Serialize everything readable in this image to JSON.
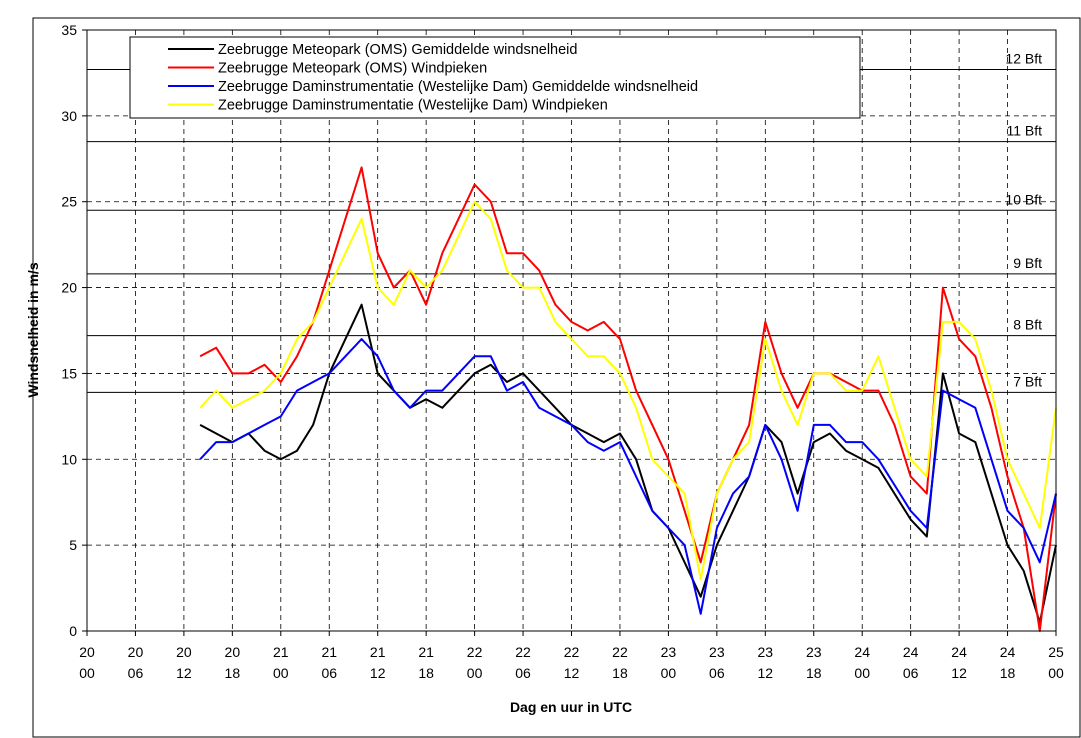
{
  "chart_data": {
    "type": "line",
    "xlabel": "Dag en uur in UTC",
    "ylabel": "Windsnelheid in m/s",
    "x": [
      14,
      16,
      18,
      20,
      22,
      24,
      26,
      28,
      30,
      32,
      34,
      36,
      38,
      40,
      42,
      44,
      46,
      48,
      50,
      52,
      54,
      56,
      58,
      60,
      62,
      64,
      66,
      68,
      70,
      72,
      74,
      76,
      78,
      80,
      82,
      84,
      86,
      88,
      90,
      92,
      94,
      96,
      98,
      100,
      102,
      104,
      106,
      108,
      110,
      112,
      114,
      116,
      118,
      120
    ],
    "series": [
      {
        "name": "Zeebrugge Meteopark (OMS) Gemiddelde windsnelheid",
        "color": "#000000",
        "values": [
          12,
          11.5,
          11,
          11.5,
          10.5,
          10,
          10.5,
          12,
          15,
          17,
          19,
          15,
          14,
          13,
          13.5,
          13,
          14,
          15,
          15.5,
          14.5,
          15,
          14,
          13,
          12,
          11.5,
          11,
          11.5,
          10,
          7,
          6,
          4,
          2,
          5,
          7,
          9,
          12,
          11,
          8,
          11,
          11.5,
          10.5,
          10,
          9.5,
          8,
          6.5,
          5.5,
          15,
          11.5,
          11,
          8,
          5,
          3.5,
          0.5,
          5
        ]
      },
      {
        "name": "Zeebrugge Meteopark (OMS) Windpieken",
        "color": "#ff0000",
        "values": [
          16,
          16.5,
          15,
          15,
          15.5,
          14.5,
          16,
          18,
          21,
          24,
          27,
          22,
          20,
          21,
          19,
          22,
          24,
          26,
          25,
          22,
          22,
          21,
          19,
          18,
          17.5,
          18,
          17,
          14,
          12,
          10,
          7,
          4,
          8,
          10,
          12,
          18,
          15,
          13,
          15,
          15,
          14.5,
          14,
          14,
          12,
          9,
          8,
          20,
          17,
          16,
          13,
          9,
          6,
          0,
          8
        ]
      },
      {
        "name": "Zeebrugge Daminstrumentatie (Westelijke Dam) Gemiddelde windsnelheid",
        "color": "#0000ff",
        "values": [
          10,
          11,
          11,
          11.5,
          12,
          12.5,
          14,
          14.5,
          15,
          16,
          17,
          16,
          14,
          13,
          14,
          14,
          15,
          16,
          16,
          14,
          14.5,
          13,
          12.5,
          12,
          11,
          10.5,
          11,
          9,
          7,
          6,
          5,
          1,
          6,
          8,
          9,
          12,
          10,
          7,
          12,
          12,
          11,
          11,
          10,
          8.5,
          7,
          6,
          14,
          13.5,
          13,
          10,
          7,
          6,
          4,
          8
        ]
      },
      {
        "name": "Zeebrugge Daminstrumentatie (Westelijke Dam) Windpieken",
        "color": "#ffff00",
        "values": [
          13,
          14,
          13,
          13.5,
          14,
          15,
          17,
          18,
          20,
          22,
          24,
          20,
          19,
          21,
          20,
          21,
          23,
          25,
          24,
          21,
          20,
          20,
          18,
          17,
          16,
          16,
          15,
          13,
          10,
          9,
          8,
          3,
          8,
          10,
          11,
          17,
          14,
          12,
          15,
          15,
          14,
          14,
          16,
          13,
          10,
          9,
          18,
          18,
          17,
          14,
          10,
          8,
          6,
          13
        ]
      }
    ],
    "xlim": [
      0,
      120
    ],
    "xticks": [
      {
        "value": 0,
        "label": "20 00"
      },
      {
        "value": 6,
        "label": "20 06"
      },
      {
        "value": 12,
        "label": "20 12"
      },
      {
        "value": 18,
        "label": "20 18"
      },
      {
        "value": 24,
        "label": "21 00"
      },
      {
        "value": 30,
        "label": "21 06"
      },
      {
        "value": 36,
        "label": "21 12"
      },
      {
        "value": 42,
        "label": "21 18"
      },
      {
        "value": 48,
        "label": "22 00"
      },
      {
        "value": 54,
        "label": "22 06"
      },
      {
        "value": 60,
        "label": "22 12"
      },
      {
        "value": 66,
        "label": "22 18"
      },
      {
        "value": 72,
        "label": "23 00"
      },
      {
        "value": 78,
        "label": "23 06"
      },
      {
        "value": 84,
        "label": "23 12"
      },
      {
        "value": 90,
        "label": "23 18"
      },
      {
        "value": 96,
        "label": "24 00"
      },
      {
        "value": 102,
        "label": "24 06"
      },
      {
        "value": 108,
        "label": "24 12"
      },
      {
        "value": 114,
        "label": "24 18"
      },
      {
        "value": 120,
        "label": "25 00"
      }
    ],
    "ylim": [
      0,
      35
    ],
    "yticks": [
      0,
      5,
      10,
      15,
      20,
      25,
      30,
      35
    ],
    "grid": true,
    "legend": "top-left",
    "bft_lines": [
      {
        "value": 32.7,
        "label": "12 Bft"
      },
      {
        "value": 28.5,
        "label": "11 Bft"
      },
      {
        "value": 24.5,
        "label": "10 Bft"
      },
      {
        "value": 20.8,
        "label": "9 Bft"
      },
      {
        "value": 17.2,
        "label": "8 Bft"
      },
      {
        "value": 13.9,
        "label": "7 Bft"
      }
    ]
  }
}
